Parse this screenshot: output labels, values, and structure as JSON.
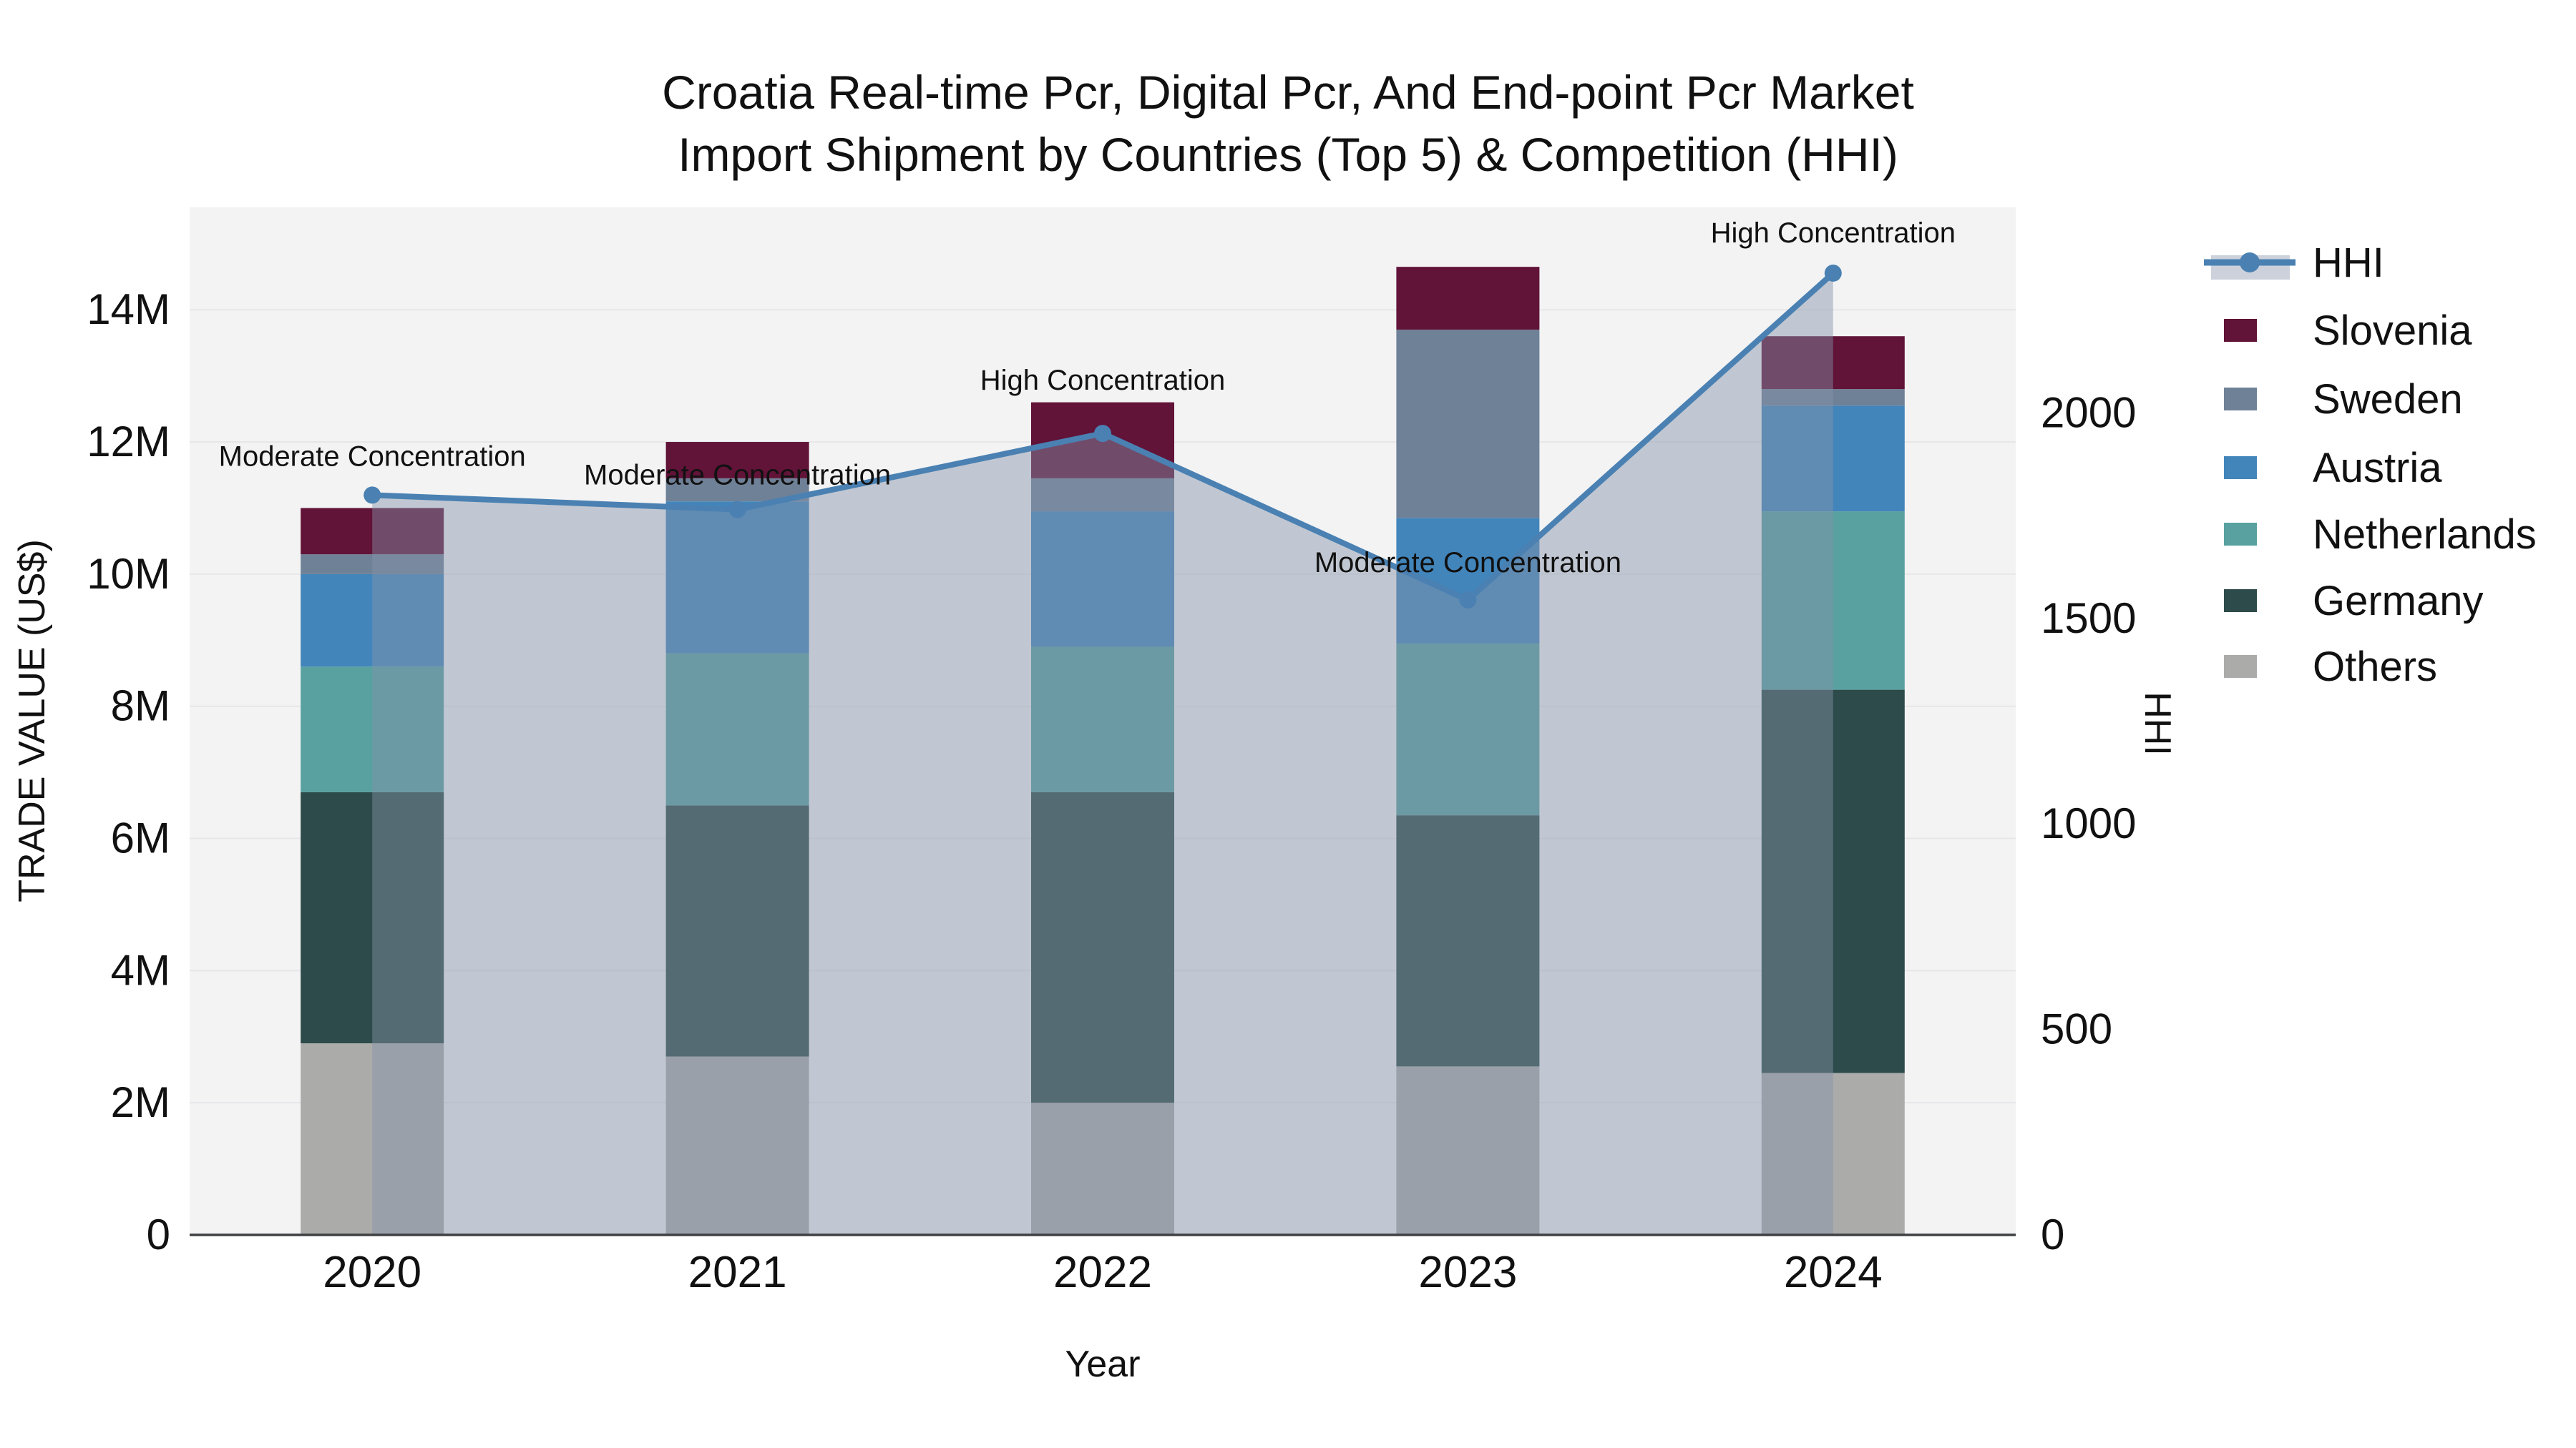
{
  "title": {
    "line1": "Croatia Real-time Pcr, Digital Pcr, And End-point Pcr Market",
    "line2": "Import Shipment by Countries (Top 5) & Competition (HHI)"
  },
  "axes": {
    "x": {
      "title": "Year",
      "ticks": [
        "2020",
        "2021",
        "2022",
        "2023",
        "2024"
      ]
    },
    "y_left": {
      "title": "TRADE VALUE (US$)",
      "ticks": [
        "0",
        "2M",
        "4M",
        "6M",
        "8M",
        "10M",
        "12M",
        "14M"
      ],
      "tick_values": [
        0,
        2,
        4,
        6,
        8,
        10,
        12,
        14
      ],
      "max_value_millions": 15.55
    },
    "y_right": {
      "title": "HHI",
      "ticks": [
        "0",
        "500",
        "1000",
        "1500",
        "2000"
      ],
      "tick_values": [
        0,
        500,
        1000,
        1500,
        2000
      ],
      "max_value": 2500
    }
  },
  "chart_data": {
    "type": "combo-stacked-bar-line",
    "categories": [
      "2020",
      "2021",
      "2022",
      "2023",
      "2024"
    ],
    "unit": "million US$",
    "series": [
      {
        "name": "Others",
        "color": "#ABABA9",
        "values": [
          2.9,
          2.7,
          2.0,
          2.55,
          2.45
        ]
      },
      {
        "name": "Germany",
        "color": "#2C4B4A",
        "values": [
          3.8,
          3.8,
          4.7,
          3.8,
          5.8
        ]
      },
      {
        "name": "Netherlands",
        "color": "#58A1A0",
        "values": [
          1.9,
          2.3,
          2.2,
          2.6,
          2.7
        ]
      },
      {
        "name": "Austria",
        "color": "#4285BB",
        "values": [
          1.4,
          2.3,
          2.05,
          1.9,
          1.6
        ]
      },
      {
        "name": "Sweden",
        "color": "#6F8197",
        "values": [
          0.3,
          0.35,
          0.5,
          2.85,
          0.25
        ]
      },
      {
        "name": "Slovenia",
        "color": "#611338",
        "values": [
          0.7,
          0.55,
          1.15,
          0.95,
          0.8
        ]
      }
    ],
    "totals_millions": [
      11.0,
      12.0,
      12.6,
      14.65,
      13.6
    ],
    "hhi": {
      "name": "HHI",
      "line_color": "#4A81B2",
      "area_fill": "rgba(133,146,168,0.45)",
      "values": [
        1800,
        1765,
        1950,
        1545,
        2340
      ],
      "annotations": [
        {
          "text": "Moderate Concentration",
          "dy": -41
        },
        {
          "text": "Moderate Concentration",
          "dy": -35
        },
        {
          "text": "High Concentration",
          "dy": -61
        },
        {
          "text": "Moderate Concentration",
          "dy": -39
        },
        {
          "text": "High Concentration",
          "dy": -43
        }
      ]
    },
    "layout_hints": {
      "plot_background": "#F3F3F4",
      "gridline_color": "#E7E7EA",
      "axis_line_color": "#3F4043",
      "grid_step_millions": 2,
      "legend_position": "right",
      "bar_colors_muted_by_area_overlay": true
    }
  },
  "legend": {
    "items": [
      {
        "label": "HHI",
        "type": "line",
        "color": "#4A81B2",
        "band_color": "#CCD1DB"
      },
      {
        "label": "Slovenia",
        "type": "swatch",
        "color": "#611338"
      },
      {
        "label": "Sweden",
        "type": "swatch",
        "color": "#6F8197"
      },
      {
        "label": "Austria",
        "type": "swatch",
        "color": "#4285BB"
      },
      {
        "label": "Netherlands",
        "type": "swatch",
        "color": "#58A1A0"
      },
      {
        "label": "Germany",
        "type": "swatch",
        "color": "#2C4B4A"
      },
      {
        "label": "Others",
        "type": "swatch",
        "color": "#ABABA9"
      }
    ]
  }
}
